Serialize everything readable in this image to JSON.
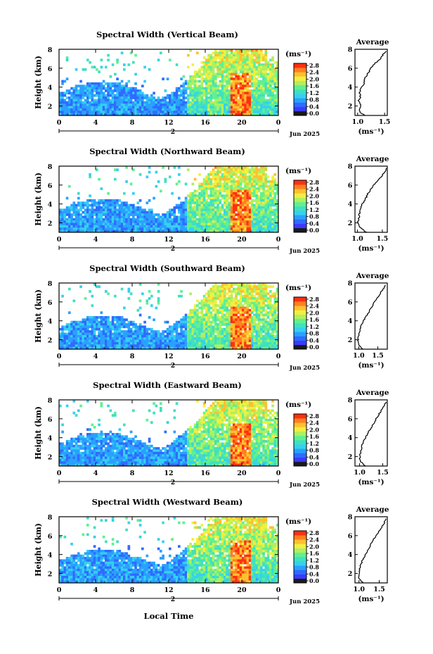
{
  "colors": {
    "colormap": [
      "#1a1a1a",
      "#3b3bff",
      "#2f6bff",
      "#2aa0ff",
      "#35d0f0",
      "#40e0c0",
      "#60f090",
      "#b0f060",
      "#f0f040",
      "#ffc030",
      "#ff8020",
      "#ff3010"
    ],
    "background": "#ffffff",
    "average_line": "#000000"
  },
  "shared": {
    "xlabel": "Local Time",
    "date_label": "Jun 2025",
    "day_label": "2",
    "x_ticks": [
      "0",
      "4",
      "8",
      "12",
      "16",
      "20",
      "0"
    ],
    "y_ticks": [
      "2",
      "4",
      "6",
      "8"
    ],
    "ylabel": "Height (km)",
    "cbar_unit": "(ms⁻¹)",
    "cbar_ticks": [
      "0.0",
      "0.4",
      "0.8",
      "1.2",
      "1.6",
      "2.0",
      "2.4",
      "2.8"
    ],
    "avg_title": "Average",
    "avg_unit": "(ms⁻¹)"
  },
  "chart_data": [
    {
      "type": "heatmap",
      "title": "Spectral Width (Vertical Beam)",
      "xlim": [
        0,
        24
      ],
      "ylim": [
        1,
        8
      ],
      "clim": [
        0.0,
        2.8
      ],
      "average_profile": {
        "xticks": [
          "1.0",
          "1.5"
        ],
        "xlim": [
          0.95,
          1.55
        ],
        "height": [
          1.0,
          1.5,
          2.0,
          2.5,
          3.0,
          3.5,
          4.0,
          4.5,
          5.0,
          5.5,
          6.0,
          6.5,
          7.0,
          7.5,
          7.8
        ],
        "value": [
          1.12,
          1.02,
          1.06,
          1.02,
          1.05,
          1.03,
          1.08,
          1.12,
          1.14,
          1.2,
          1.24,
          1.32,
          1.42,
          1.48,
          1.53
        ]
      }
    },
    {
      "type": "heatmap",
      "title": "Spectral Width (Northward Beam)",
      "xlim": [
        0,
        24
      ],
      "ylim": [
        1,
        8
      ],
      "clim": [
        0.0,
        2.8
      ],
      "average_profile": {
        "xticks": [
          "1.0",
          "1.5"
        ],
        "xlim": [
          0.95,
          1.6
        ],
        "height": [
          1.0,
          1.5,
          2.0,
          2.5,
          3.0,
          3.5,
          4.0,
          4.5,
          5.0,
          5.5,
          6.0,
          6.5,
          7.0,
          7.5,
          7.8
        ],
        "value": [
          1.18,
          1.05,
          1.0,
          1.03,
          1.04,
          1.06,
          1.1,
          1.16,
          1.2,
          1.26,
          1.32,
          1.4,
          1.5,
          1.56,
          1.58
        ]
      }
    },
    {
      "type": "heatmap",
      "title": "Spectral Width (Southward Beam)",
      "xlim": [
        0,
        24
      ],
      "ylim": [
        1,
        8
      ],
      "clim": [
        0.0,
        2.8
      ],
      "average_profile": {
        "xticks": [
          "1.0",
          "1.5"
        ],
        "xlim": [
          0.9,
          1.75
        ],
        "height": [
          1.0,
          1.5,
          2.0,
          2.5,
          3.0,
          3.5,
          4.0,
          4.5,
          5.0,
          5.5,
          6.0,
          6.5,
          7.0,
          7.5,
          7.8
        ],
        "value": [
          1.1,
          1.0,
          0.98,
          1.0,
          1.03,
          1.06,
          1.12,
          1.2,
          1.28,
          1.34,
          1.42,
          1.5,
          1.58,
          1.66,
          1.7
        ]
      }
    },
    {
      "type": "heatmap",
      "title": "Spectral Width (Eastward Beam)",
      "xlim": [
        0,
        24
      ],
      "ylim": [
        1,
        8
      ],
      "clim": [
        0.0,
        2.8
      ],
      "average_profile": {
        "xticks": [
          "1.0",
          "1.5"
        ],
        "xlim": [
          0.9,
          1.6
        ],
        "height": [
          1.0,
          1.5,
          2.0,
          2.5,
          3.0,
          3.5,
          4.0,
          4.5,
          5.0,
          5.5,
          6.0,
          6.5,
          7.0,
          7.5,
          7.8
        ],
        "value": [
          1.12,
          1.02,
          1.0,
          1.02,
          1.04,
          1.08,
          1.12,
          1.18,
          1.24,
          1.3,
          1.36,
          1.42,
          1.48,
          1.54,
          1.58
        ]
      }
    },
    {
      "type": "heatmap",
      "title": "Spectral Width (Westward Beam)",
      "xlim": [
        0,
        24
      ],
      "ylim": [
        1,
        8
      ],
      "clim": [
        0.0,
        2.8
      ],
      "average_profile": {
        "xticks": [
          "1.0",
          "1.5"
        ],
        "xlim": [
          0.9,
          1.7
        ],
        "height": [
          1.0,
          1.5,
          2.0,
          2.5,
          3.0,
          3.5,
          4.0,
          4.5,
          5.0,
          5.5,
          6.0,
          6.5,
          7.0,
          7.5,
          7.8
        ],
        "value": [
          1.1,
          1.0,
          1.0,
          1.02,
          1.05,
          1.1,
          1.16,
          1.22,
          1.28,
          1.34,
          1.42,
          1.5,
          1.58,
          1.64,
          1.68
        ]
      }
    }
  ]
}
